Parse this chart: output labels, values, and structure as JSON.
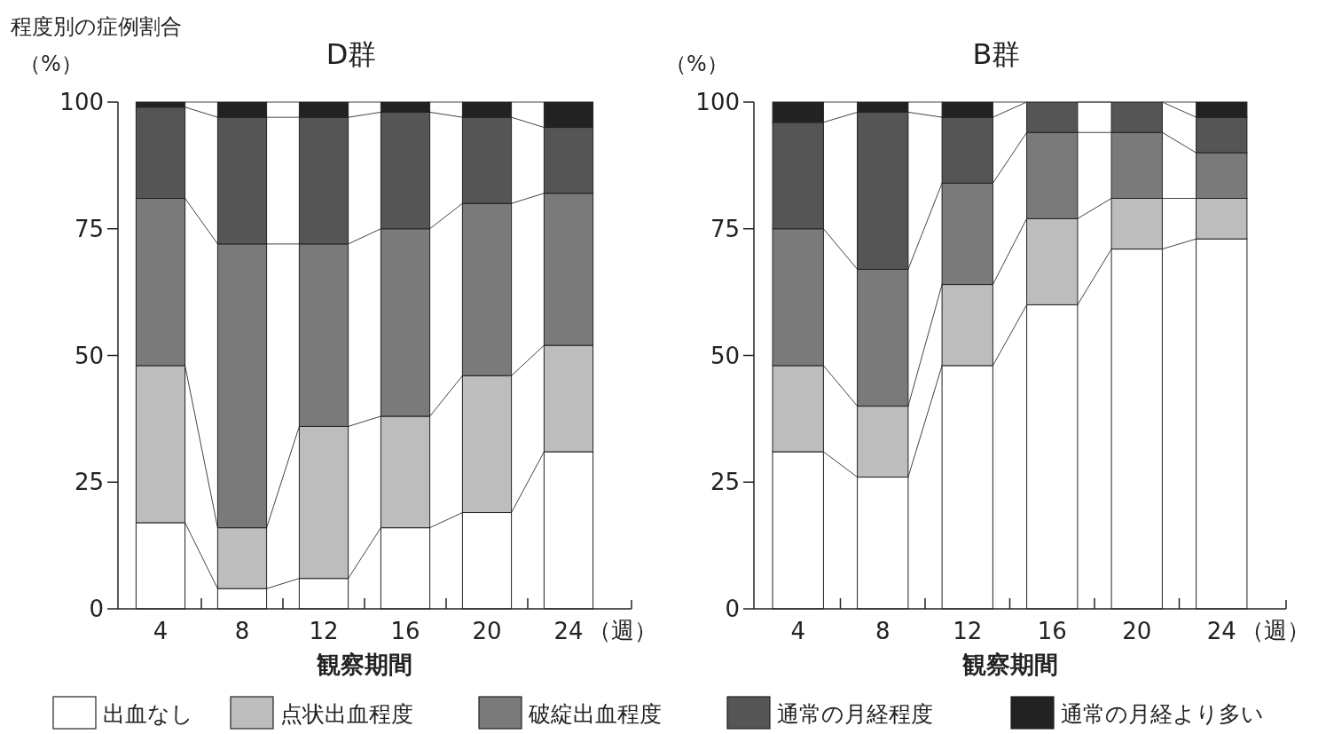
{
  "chart_data": [
    {
      "type": "bar",
      "stacked": true,
      "title": "D群",
      "ylabel": "程度別の症例割合（%）",
      "xlabel": "観察期間",
      "annotations": [
        "（週）"
      ],
      "categories": [
        "4",
        "8",
        "12",
        "16",
        "20",
        "24"
      ],
      "ylim": [
        0,
        100
      ],
      "yticks": [
        0,
        25,
        50,
        75,
        100
      ],
      "grid": false,
      "legend": "bottom",
      "series": [
        {
          "name": "出血なし",
          "color": "#ffffff",
          "values": [
            17,
            4,
            6,
            16,
            19,
            31
          ]
        },
        {
          "name": "点状出血程度",
          "color": "#bdbdbd",
          "values": [
            31,
            12,
            30,
            22,
            27,
            21
          ]
        },
        {
          "name": "破綻出血程度",
          "color": "#7a7a7a",
          "values": [
            33,
            56,
            36,
            37,
            34,
            30
          ]
        },
        {
          "name": "通常の月経程度",
          "color": "#555555",
          "values": [
            18,
            25,
            25,
            23,
            17,
            13
          ]
        },
        {
          "name": "通常の月経より多い",
          "color": "#222222",
          "values": [
            1,
            3,
            3,
            2,
            3,
            5
          ]
        }
      ]
    },
    {
      "type": "bar",
      "stacked": true,
      "title": "B群",
      "ylabel": "（%）",
      "xlabel": "観察期間",
      "annotations": [
        "（週）"
      ],
      "categories": [
        "4",
        "8",
        "12",
        "16",
        "20",
        "24"
      ],
      "ylim": [
        0,
        100
      ],
      "yticks": [
        0,
        25,
        50,
        75,
        100
      ],
      "grid": false,
      "series": [
        {
          "color": "#ffffff",
          "values": [
            31,
            26,
            48,
            60,
            71,
            73
          ]
        },
        {
          "color": "#bdbdbd",
          "values": [
            17,
            14,
            16,
            17,
            10,
            8
          ]
        },
        {
          "color": "#7a7a7a",
          "values": [
            27,
            27,
            20,
            17,
            13,
            9
          ]
        },
        {
          "color": "#555555",
          "values": [
            21,
            31,
            13,
            6,
            6,
            7
          ]
        },
        {
          "color": "#222222",
          "values": [
            4,
            2,
            3,
            0,
            0,
            3
          ]
        }
      ]
    }
  ]
}
